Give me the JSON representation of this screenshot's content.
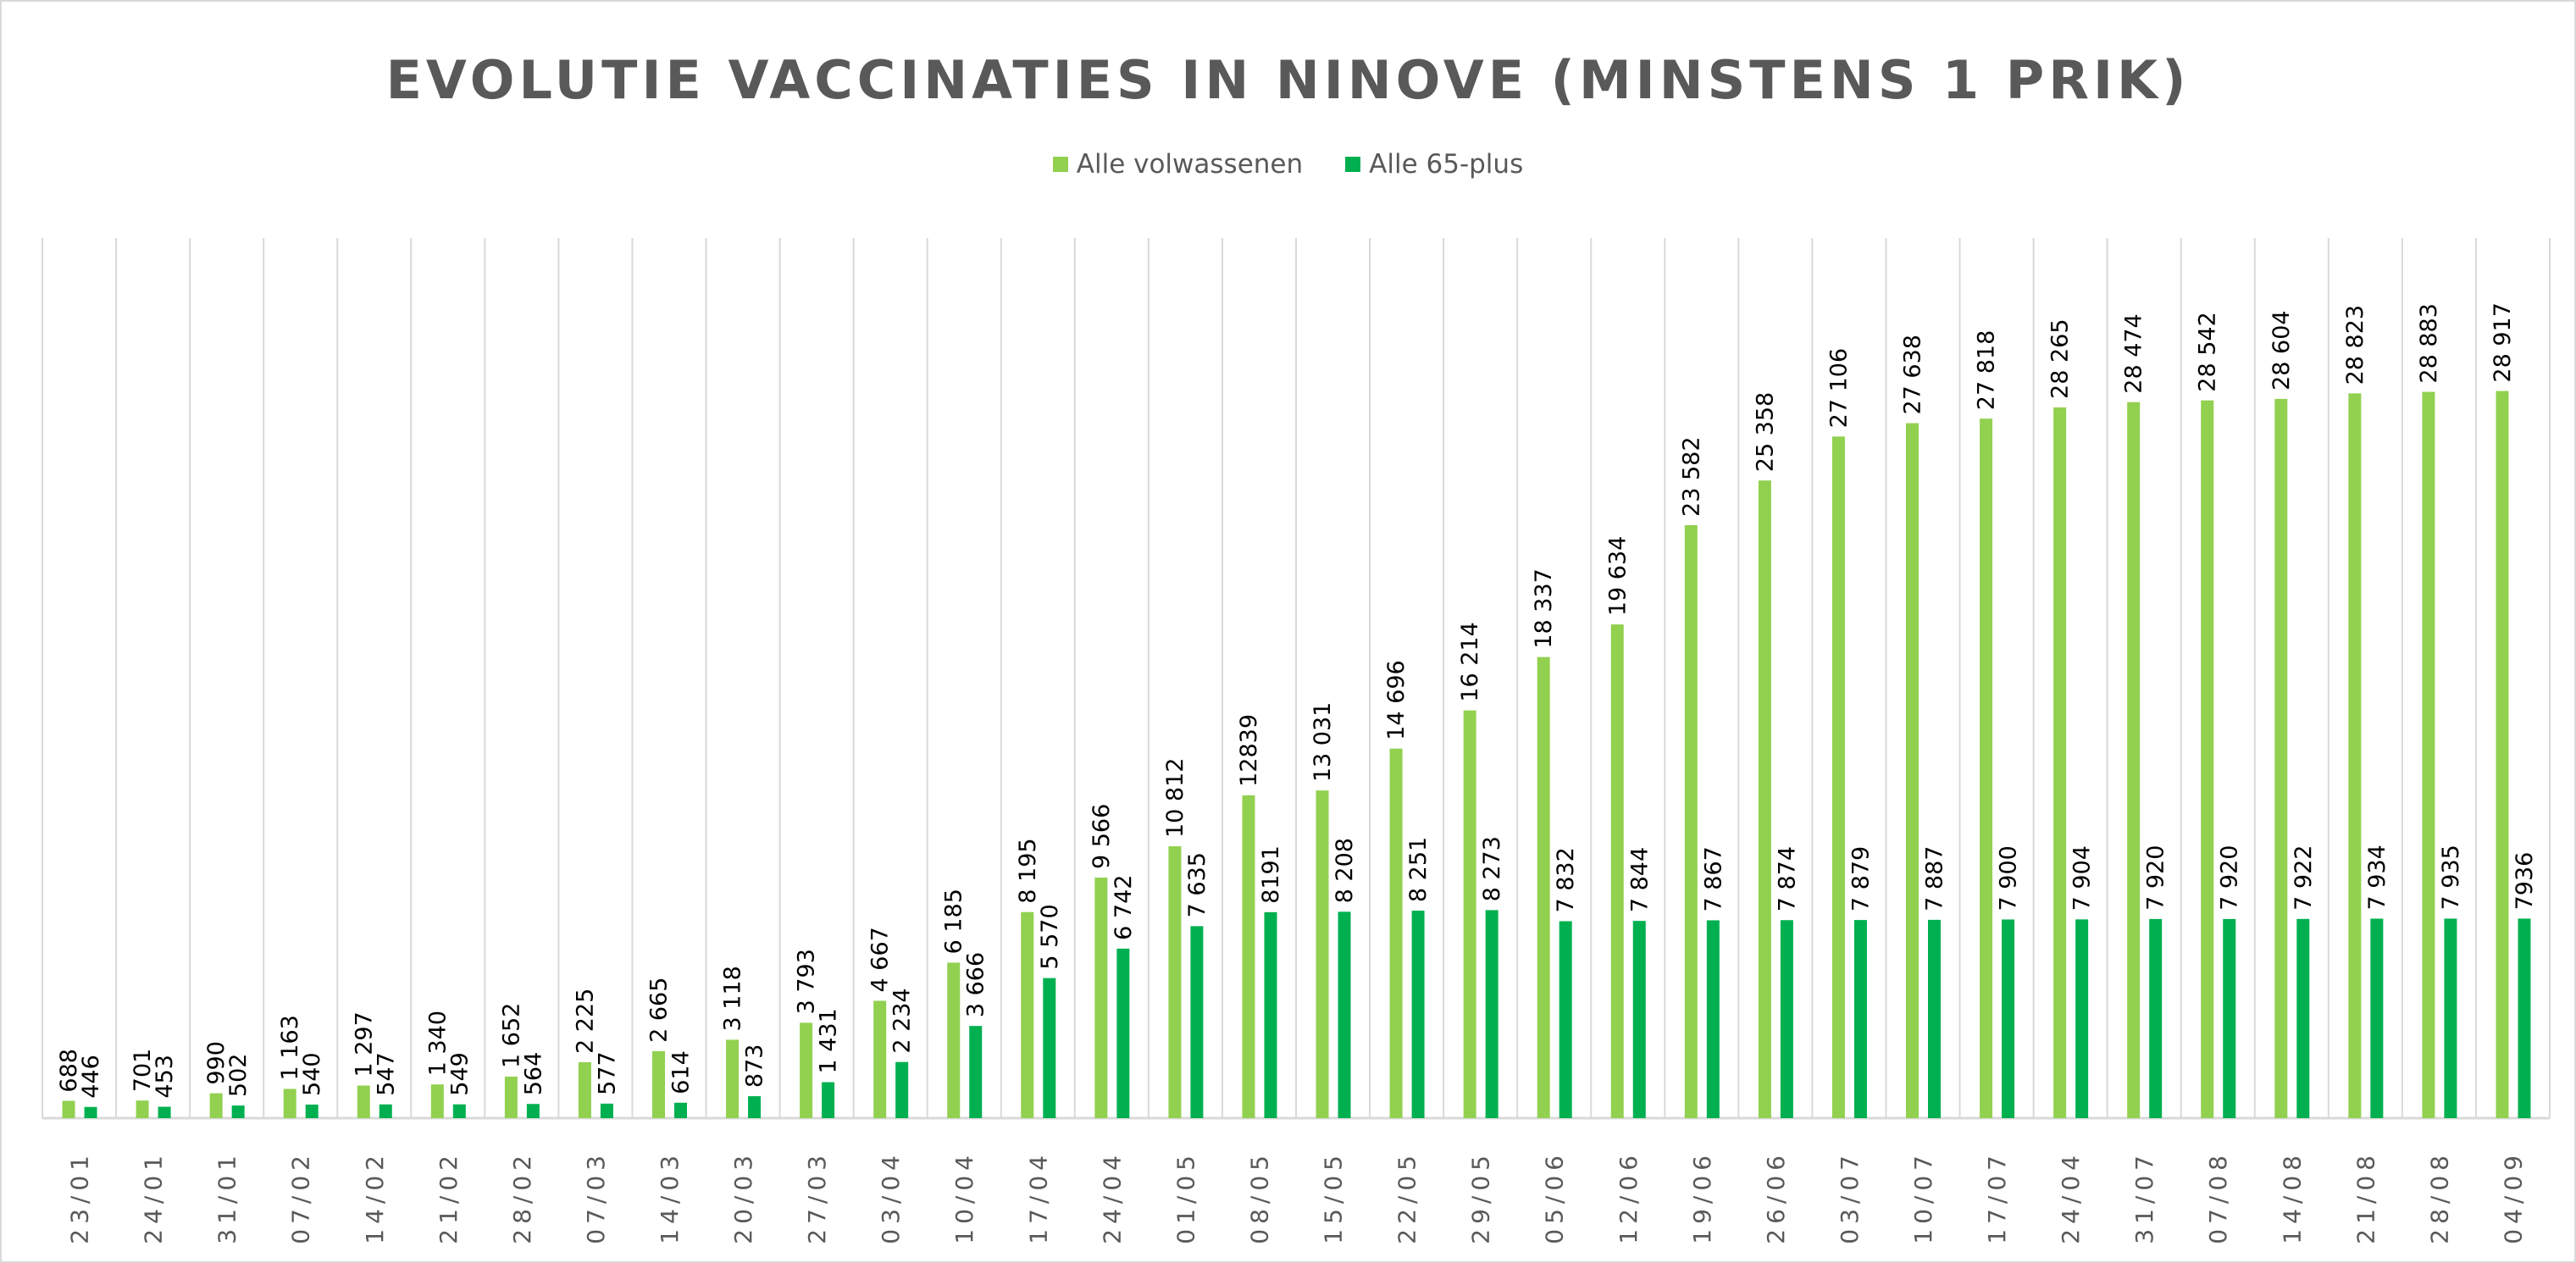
{
  "chart_data": {
    "type": "bar",
    "title": "EVOLUTIE VACCINATIES IN NINOVE (MINSTENS 1 PRIK)",
    "xlabel": "",
    "ylabel": "",
    "ylim": [
      0,
      35000
    ],
    "grid": "vertical category separators",
    "legend_position": "top",
    "categories": [
      "23/01",
      "24/01",
      "31/01",
      "07/02",
      "14/02",
      "21/02",
      "28/02",
      "07/03",
      "14/03",
      "20/03",
      "27/03",
      "03/04",
      "10/04",
      "17/04",
      "24/04",
      "01/05",
      "08/05",
      "15/05",
      "22/05",
      "29/05",
      "05/06",
      "12/06",
      "19/06",
      "26/06",
      "03/07",
      "10/07",
      "17/07",
      "24/04",
      "31/07",
      "07/08",
      "14/08",
      "21/08",
      "28/08",
      "04/09"
    ],
    "series": [
      {
        "name": "Alle volwassenen",
        "color": "#92d050",
        "values": [
          688,
          701,
          990,
          1163,
          1297,
          1340,
          1652,
          2225,
          2665,
          3118,
          3793,
          4667,
          6185,
          8195,
          9566,
          10812,
          12839,
          13031,
          14696,
          16214,
          18337,
          19634,
          23582,
          25358,
          27106,
          27638,
          27818,
          28265,
          28474,
          28542,
          28604,
          28823,
          28883,
          28917
        ],
        "labels": [
          "688",
          "701",
          "990",
          "1 163",
          "1 297",
          "1 340",
          "1 652",
          "2 225",
          "2 665",
          "3 118",
          "3 793",
          "4 667",
          "6 185",
          "8 195",
          "9 566",
          "10 812",
          "12839",
          "13 031",
          "14 696",
          "16 214",
          "18 337",
          "19 634",
          "23 582",
          "25 358",
          "27 106",
          "27 638",
          "27 818",
          "28 265",
          "28 474",
          "28 542",
          "28 604",
          "28 823",
          "28 883",
          "28 917"
        ]
      },
      {
        "name": "Alle 65-plus",
        "color": "#00b050",
        "values": [
          446,
          453,
          502,
          540,
          547,
          549,
          564,
          577,
          614,
          873,
          1431,
          2234,
          3666,
          5570,
          6742,
          7635,
          8191,
          8208,
          8251,
          8273,
          7832,
          7844,
          7867,
          7874,
          7879,
          7887,
          7900,
          7904,
          7920,
          7920,
          7922,
          7934,
          7935,
          7936
        ],
        "labels": [
          "446",
          "453",
          "502",
          "540",
          "547",
          "549",
          "564",
          "577",
          "614",
          "873",
          "1 431",
          "2 234",
          "3 666",
          "5 570",
          "6 742",
          "7 635",
          "8191",
          "8 208",
          "8 251",
          "8 273",
          "7 832",
          "7 844",
          "7 867",
          "7 874",
          "7 879",
          "7 887",
          "7 900",
          "7 904",
          "7 920",
          "7 920",
          "7 922",
          "7 934",
          "7 935",
          "7936"
        ]
      }
    ]
  }
}
